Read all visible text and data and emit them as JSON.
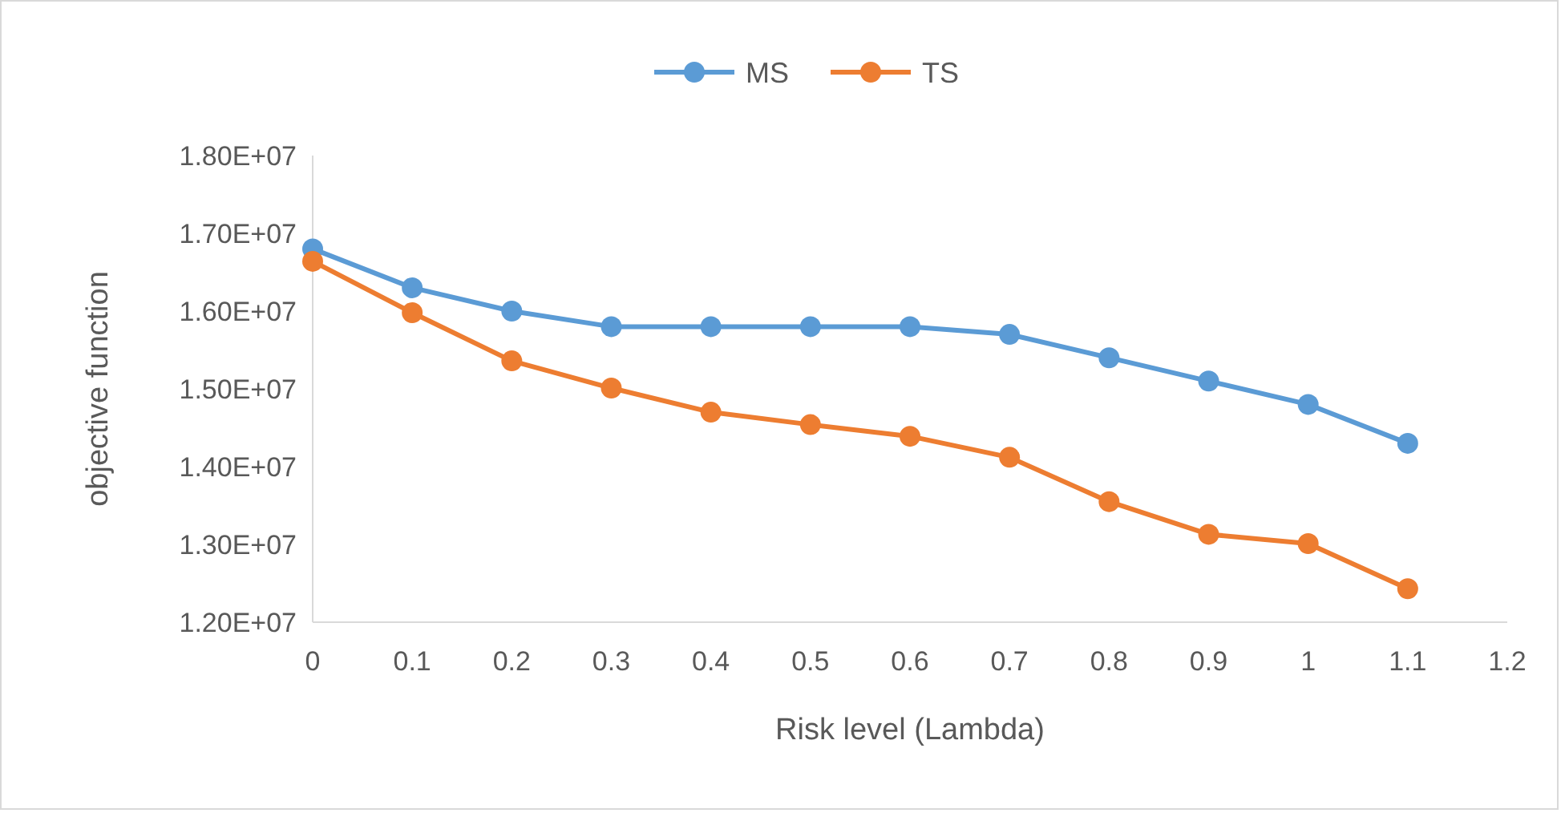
{
  "chart_data": {
    "type": "line",
    "xlabel": "Risk level (Lambda)",
    "ylabel": "objective function",
    "x": [
      0,
      0.1,
      0.2,
      0.3,
      0.4,
      0.5,
      0.6,
      0.7,
      0.8,
      0.9,
      1,
      1.1
    ],
    "series": [
      {
        "name": "MS",
        "color": "#5b9bd5",
        "values": [
          16800000,
          16300000,
          16000000,
          15800000,
          15800000,
          15800000,
          15800000,
          15700000,
          15400000,
          15100000,
          14800000,
          14300000
        ]
      },
      {
        "name": "TS",
        "color": "#ed7d31",
        "values": [
          16640000,
          15980000,
          15360000,
          15010000,
          14700000,
          14540000,
          14390000,
          14120000,
          13550000,
          13130000,
          13010000,
          12430000
        ]
      }
    ],
    "xlim": [
      0,
      1.2
    ],
    "xticks": [
      0,
      0.1,
      0.2,
      0.3,
      0.4,
      0.5,
      0.6,
      0.7,
      0.8,
      0.9,
      1,
      1.1,
      1.2
    ],
    "ylim": [
      12000000,
      18000000
    ],
    "yticks": [
      {
        "value": 12000000,
        "label": "1.20E+07"
      },
      {
        "value": 13000000,
        "label": "1.30E+07"
      },
      {
        "value": 14000000,
        "label": "1.40E+07"
      },
      {
        "value": 15000000,
        "label": "1.50E+07"
      },
      {
        "value": 16000000,
        "label": "1.60E+07"
      },
      {
        "value": 17000000,
        "label": "1.70E+07"
      },
      {
        "value": 18000000,
        "label": "1.80E+07"
      }
    ],
    "grid": false,
    "legend": "top",
    "marker": "circle",
    "line_style": "solid"
  }
}
